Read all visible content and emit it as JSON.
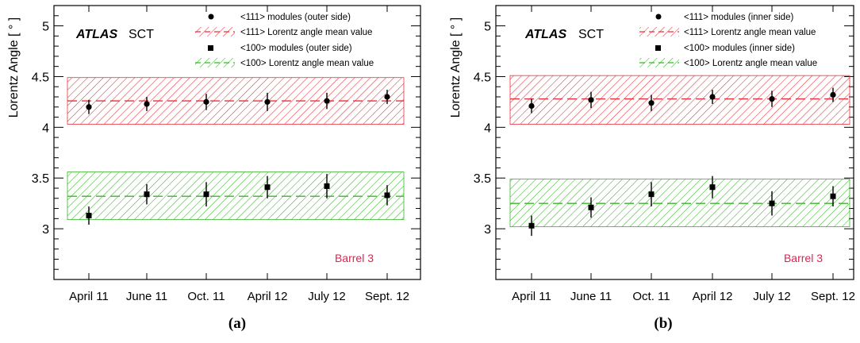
{
  "colors": {
    "red": "#e8323c",
    "green": "#3cb42d",
    "barrel_label": "#e81e50",
    "marker": "#000000"
  },
  "chart_data": [
    {
      "type": "scatter",
      "panel_caption": "(a)",
      "experiment": "ATLAS",
      "detector": "SCT",
      "region_label": "Barrel 3",
      "ylabel": "Lorentz Angle [ ° ]",
      "xlabel": "",
      "ylim": [
        2.5,
        5.2
      ],
      "yticks": [
        3,
        3.5,
        4,
        4.5,
        5
      ],
      "ytick_labels": [
        "3",
        "3.5",
        "4",
        "4.5",
        "5"
      ],
      "categories": [
        "April 11",
        "June 11",
        "Oct. 11",
        "April 12",
        "July 12",
        "Sept. 12"
      ],
      "legend_position": "top-right",
      "legend": [
        "<111> modules (outer side)",
        "<111> Lorentz angle mean value",
        "<100> modules (outer side)",
        "<100> Lorentz angle mean value"
      ],
      "series": [
        {
          "name": "<111> modules (outer side)",
          "marker": "circle",
          "values": [
            4.2,
            4.23,
            4.25,
            4.25,
            4.26,
            4.3
          ],
          "errors": [
            0.07,
            0.07,
            0.08,
            0.09,
            0.08,
            0.07
          ]
        },
        {
          "name": "<100> modules (outer side)",
          "marker": "square",
          "values": [
            3.13,
            3.34,
            3.34,
            3.41,
            3.42,
            3.33
          ],
          "errors": [
            0.09,
            0.1,
            0.12,
            0.11,
            0.12,
            0.1
          ]
        }
      ],
      "bands": [
        {
          "name": "<111> Lorentz angle mean value",
          "color": "red",
          "mean": 4.26,
          "low": 4.03,
          "high": 4.49
        },
        {
          "name": "<100> Lorentz angle mean value",
          "color": "green",
          "mean": 3.32,
          "low": 3.09,
          "high": 3.56
        }
      ]
    },
    {
      "type": "scatter",
      "panel_caption": "(b)",
      "experiment": "ATLAS",
      "detector": "SCT",
      "region_label": "Barrel 3",
      "ylabel": "Lorentz Angle [ ° ]",
      "xlabel": "",
      "ylim": [
        2.5,
        5.2
      ],
      "yticks": [
        3,
        3.5,
        4,
        4.5,
        5
      ],
      "ytick_labels": [
        "3",
        "3.5",
        "4",
        "4.5",
        "5"
      ],
      "categories": [
        "April 11",
        "June 11",
        "Oct. 11",
        "April 12",
        "July 12",
        "Sept. 12"
      ],
      "legend_position": "top-right",
      "legend": [
        "<111> modules (inner side)",
        "<111> Lorentz angle mean value",
        "<100> modules (inner side)",
        "<100> Lorentz angle mean value"
      ],
      "series": [
        {
          "name": "<111> modules (inner side)",
          "marker": "circle",
          "values": [
            4.21,
            4.27,
            4.24,
            4.3,
            4.28,
            4.32
          ],
          "errors": [
            0.07,
            0.08,
            0.08,
            0.07,
            0.08,
            0.07
          ]
        },
        {
          "name": "<100> modules (inner side)",
          "marker": "square",
          "values": [
            3.03,
            3.21,
            3.34,
            3.41,
            3.25,
            3.32
          ],
          "errors": [
            0.1,
            0.1,
            0.12,
            0.11,
            0.12,
            0.1
          ]
        }
      ],
      "bands": [
        {
          "name": "<111> Lorentz angle mean value",
          "color": "red",
          "mean": 4.28,
          "low": 4.03,
          "high": 4.51
        },
        {
          "name": "<100> Lorentz angle mean value",
          "color": "green",
          "mean": 3.25,
          "low": 3.02,
          "high": 3.49
        }
      ]
    }
  ]
}
